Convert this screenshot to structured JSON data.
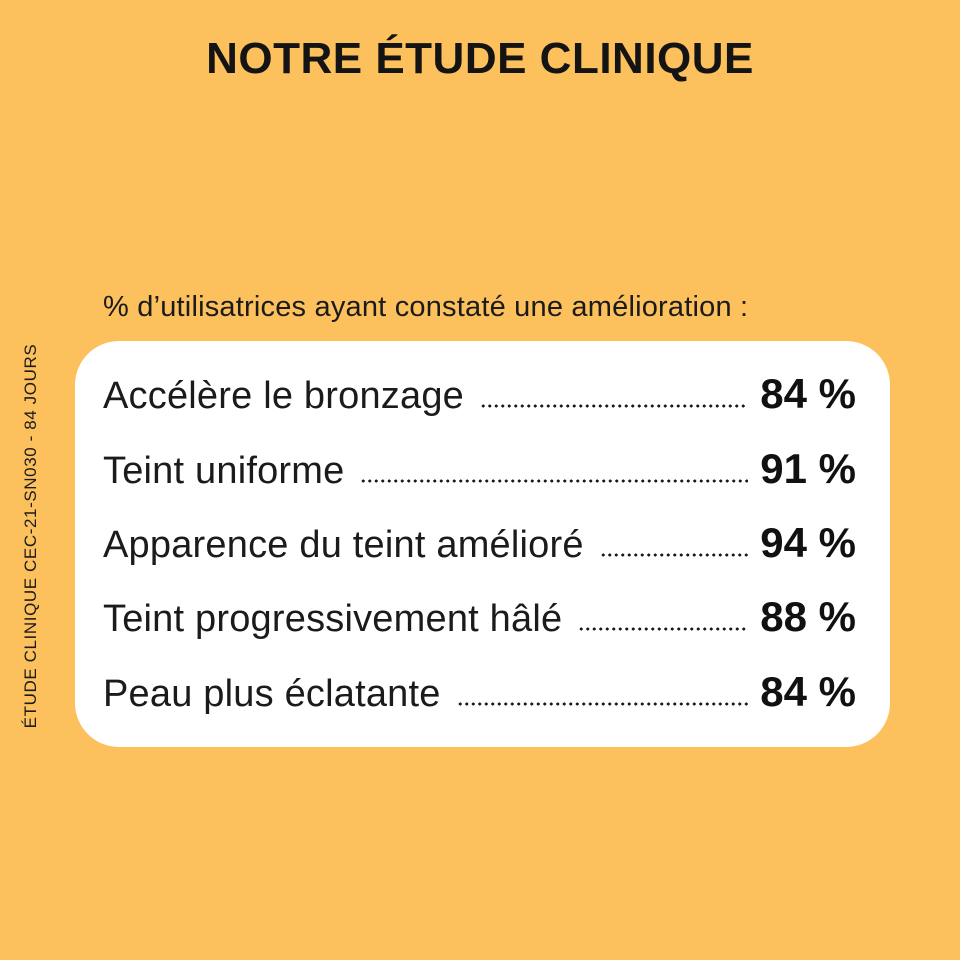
{
  "colors": {
    "background": "#FCC05C",
    "card": "#FFFFFF",
    "text": "#161616"
  },
  "title": "NOTRE ÉTUDE CLINIQUE",
  "subtitle": "% d’utilisatrices ayant constaté une amélioration :",
  "side_label": "ÉTUDE CLINIQUE CEC-21-SN030 - 84 JOURS",
  "results": [
    {
      "label": "Accélère le bronzage",
      "value": "84 %"
    },
    {
      "label": "Teint uniforme",
      "value": "91 %"
    },
    {
      "label": "Apparence du teint amélioré",
      "value": "94 %"
    },
    {
      "label": "Teint progressivement hâlé",
      "value": "88 %"
    },
    {
      "label": "Peau plus éclatante",
      "value": "84 %"
    }
  ],
  "chart_data": {
    "type": "table",
    "title": "NOTRE ÉTUDE CLINIQUE",
    "subtitle": "% d’utilisatrices ayant constaté une amélioration :",
    "categories": [
      "Accélère le bronzage",
      "Teint uniforme",
      "Apparence du teint amélioré",
      "Teint progressivement hâlé",
      "Peau plus éclatante"
    ],
    "values": [
      84,
      91,
      94,
      88,
      84
    ],
    "unit": "%",
    "footnote": "ÉTUDE CLINIQUE CEC-21-SN030 - 84 JOURS"
  }
}
